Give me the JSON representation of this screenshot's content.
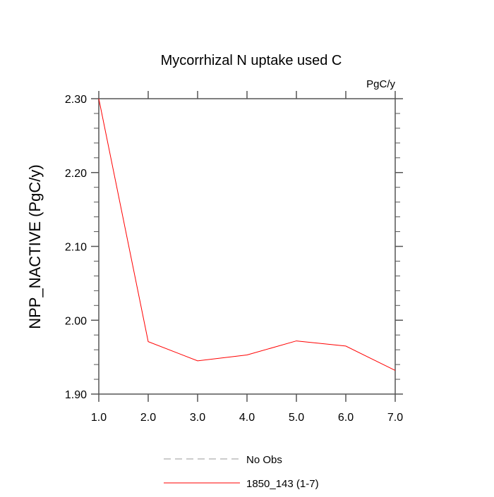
{
  "chart_data": {
    "type": "line",
    "title": "Mycorrhizal N uptake used C",
    "units_label": "PgC/y",
    "xlabel": "",
    "ylabel": "NPP_NACTIVE  (PgC/y)",
    "xlim": [
      1.0,
      7.0
    ],
    "ylim": [
      1.9,
      2.3
    ],
    "x_ticks": [
      "1.0",
      "2.0",
      "3.0",
      "4.0",
      "5.0",
      "6.0",
      "7.0"
    ],
    "y_ticks": [
      "1.90",
      "2.00",
      "2.10",
      "2.20",
      "2.30"
    ],
    "grid": false,
    "legend_placement": "bottom",
    "series": [
      {
        "name": "1850_143 (1-7)",
        "color": "#ff0000",
        "style": "solid",
        "x": [
          1,
          2,
          3,
          4,
          5,
          6,
          7
        ],
        "values": [
          2.3,
          1.971,
          1.945,
          1.953,
          1.972,
          1.965,
          1.932
        ]
      }
    ],
    "legend": [
      {
        "label": "No Obs",
        "color": "#999999",
        "style": "dashed"
      },
      {
        "label": "1850_143 (1-7)",
        "color": "#ff0000",
        "style": "solid"
      }
    ]
  }
}
